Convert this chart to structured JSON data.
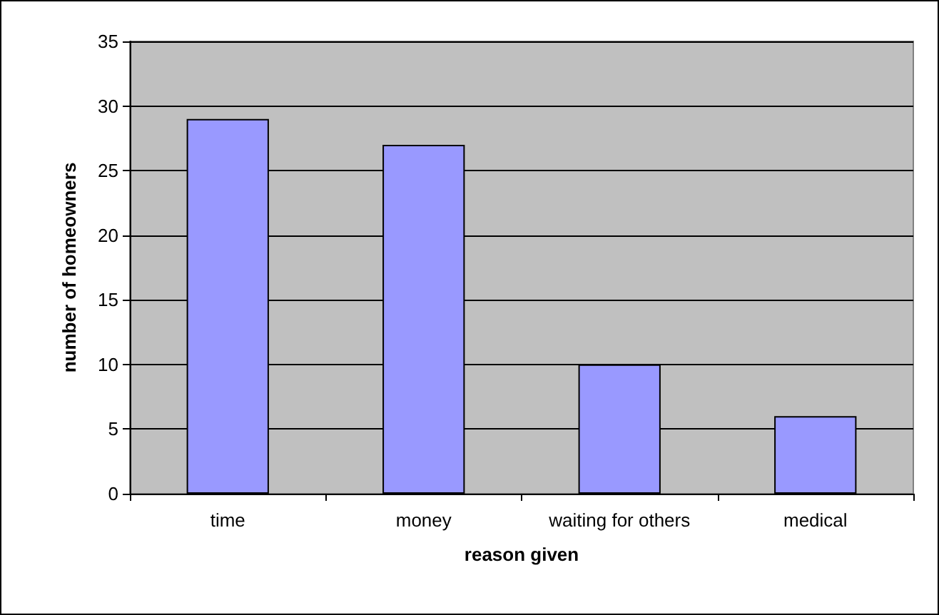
{
  "chart_data": {
    "type": "bar",
    "xlabel": "reason given",
    "ylabel": "number of homeowners",
    "categories": [
      "time",
      "money",
      "waiting for others",
      "medical"
    ],
    "values": [
      29,
      27,
      10,
      6
    ],
    "color": "#9999ff",
    "ylim": [
      0,
      35
    ],
    "yticks": [
      0,
      5,
      10,
      15,
      20,
      25,
      30,
      35
    ],
    "grid": "y"
  }
}
